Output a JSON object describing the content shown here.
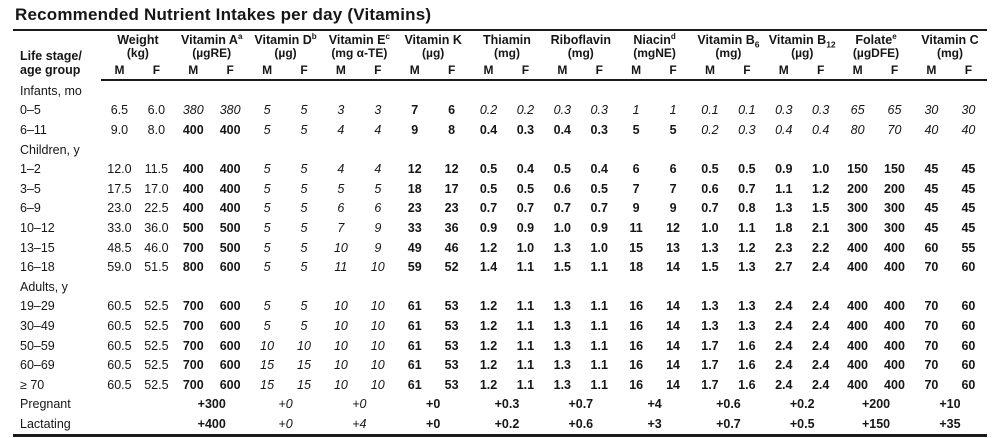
{
  "title": "Recommended Nutrient Intakes per day (Vitamins)",
  "row_header_line1": "Life stage/",
  "row_header_line2": "age group",
  "sex": {
    "m": "M",
    "f": "F"
  },
  "groups": [
    {
      "name": "Weight",
      "unit": "(kg)"
    },
    {
      "name": "Vitamin A",
      "sup": "a",
      "unit": "(µgRE)"
    },
    {
      "name": "Vitamin D",
      "sup": "b",
      "unit": "(µg)"
    },
    {
      "name": "Vitamin E",
      "sup": "c",
      "unit": "(mg α-TE)"
    },
    {
      "name": "Vitamin K",
      "unit": "(µg)"
    },
    {
      "name": "Thiamin",
      "unit": "(mg)"
    },
    {
      "name": "Riboflavin",
      "unit": "(mg)"
    },
    {
      "name": "Niacin",
      "sup": "d",
      "unit": "(mgNE)"
    },
    {
      "name": "Vitamin B",
      "sub": "6",
      "unit": "(mg)"
    },
    {
      "name": "Vitamin B",
      "sub": "12",
      "unit": "(µg)"
    },
    {
      "name": "Folate",
      "sup": "e",
      "unit": "(µgDFE)"
    },
    {
      "name": "Vitamin C",
      "unit": "(mg)"
    }
  ],
  "rows": [
    {
      "type": "section",
      "label": "Infants, mo"
    },
    {
      "type": "data",
      "label": "0–5",
      "cells": [
        [
          "6.5",
          "n"
        ],
        [
          "6.0",
          "n"
        ],
        [
          "380",
          "i"
        ],
        [
          "380",
          "i"
        ],
        [
          "5",
          "i"
        ],
        [
          "5",
          "i"
        ],
        [
          "3",
          "i"
        ],
        [
          "3",
          "i"
        ],
        [
          "7",
          "b"
        ],
        [
          "6",
          "b"
        ],
        [
          "0.2",
          "i"
        ],
        [
          "0.2",
          "i"
        ],
        [
          "0.3",
          "i"
        ],
        [
          "0.3",
          "i"
        ],
        [
          "1",
          "i"
        ],
        [
          "1",
          "i"
        ],
        [
          "0.1",
          "i"
        ],
        [
          "0.1",
          "i"
        ],
        [
          "0.3",
          "i"
        ],
        [
          "0.3",
          "i"
        ],
        [
          "65",
          "i"
        ],
        [
          "65",
          "i"
        ],
        [
          "30",
          "i"
        ],
        [
          "30",
          "i"
        ]
      ]
    },
    {
      "type": "data",
      "label": "6–11",
      "cells": [
        [
          "9.0",
          "n"
        ],
        [
          "8.0",
          "n"
        ],
        [
          "400",
          "b"
        ],
        [
          "400",
          "b"
        ],
        [
          "5",
          "i"
        ],
        [
          "5",
          "i"
        ],
        [
          "4",
          "i"
        ],
        [
          "4",
          "i"
        ],
        [
          "9",
          "b"
        ],
        [
          "8",
          "b"
        ],
        [
          "0.4",
          "b"
        ],
        [
          "0.3",
          "b"
        ],
        [
          "0.4",
          "b"
        ],
        [
          "0.3",
          "b"
        ],
        [
          "5",
          "b"
        ],
        [
          "5",
          "b"
        ],
        [
          "0.2",
          "i"
        ],
        [
          "0.3",
          "i"
        ],
        [
          "0.4",
          "i"
        ],
        [
          "0.4",
          "i"
        ],
        [
          "80",
          "i"
        ],
        [
          "70",
          "i"
        ],
        [
          "40",
          "i"
        ],
        [
          "40",
          "i"
        ]
      ]
    },
    {
      "type": "section",
      "label": "Children, y"
    },
    {
      "type": "data",
      "label": "1–2",
      "cells": [
        [
          "12.0",
          "n"
        ],
        [
          "11.5",
          "n"
        ],
        [
          "400",
          "b"
        ],
        [
          "400",
          "b"
        ],
        [
          "5",
          "i"
        ],
        [
          "5",
          "i"
        ],
        [
          "4",
          "i"
        ],
        [
          "4",
          "i"
        ],
        [
          "12",
          "b"
        ],
        [
          "12",
          "b"
        ],
        [
          "0.5",
          "b"
        ],
        [
          "0.4",
          "b"
        ],
        [
          "0.5",
          "b"
        ],
        [
          "0.4",
          "b"
        ],
        [
          "6",
          "b"
        ],
        [
          "6",
          "b"
        ],
        [
          "0.5",
          "b"
        ],
        [
          "0.5",
          "b"
        ],
        [
          "0.9",
          "b"
        ],
        [
          "1.0",
          "b"
        ],
        [
          "150",
          "b"
        ],
        [
          "150",
          "b"
        ],
        [
          "45",
          "b"
        ],
        [
          "45",
          "b"
        ]
      ]
    },
    {
      "type": "data",
      "label": "3–5",
      "cells": [
        [
          "17.5",
          "n"
        ],
        [
          "17.0",
          "n"
        ],
        [
          "400",
          "b"
        ],
        [
          "400",
          "b"
        ],
        [
          "5",
          "i"
        ],
        [
          "5",
          "i"
        ],
        [
          "5",
          "i"
        ],
        [
          "5",
          "i"
        ],
        [
          "18",
          "b"
        ],
        [
          "17",
          "b"
        ],
        [
          "0.5",
          "b"
        ],
        [
          "0.5",
          "b"
        ],
        [
          "0.6",
          "b"
        ],
        [
          "0.5",
          "b"
        ],
        [
          "7",
          "b"
        ],
        [
          "7",
          "b"
        ],
        [
          "0.6",
          "b"
        ],
        [
          "0.7",
          "b"
        ],
        [
          "1.1",
          "b"
        ],
        [
          "1.2",
          "b"
        ],
        [
          "200",
          "b"
        ],
        [
          "200",
          "b"
        ],
        [
          "45",
          "b"
        ],
        [
          "45",
          "b"
        ]
      ]
    },
    {
      "type": "data",
      "label": "6–9",
      "cells": [
        [
          "23.0",
          "n"
        ],
        [
          "22.5",
          "n"
        ],
        [
          "400",
          "b"
        ],
        [
          "400",
          "b"
        ],
        [
          "5",
          "i"
        ],
        [
          "5",
          "i"
        ],
        [
          "6",
          "i"
        ],
        [
          "6",
          "i"
        ],
        [
          "23",
          "b"
        ],
        [
          "23",
          "b"
        ],
        [
          "0.7",
          "b"
        ],
        [
          "0.7",
          "b"
        ],
        [
          "0.7",
          "b"
        ],
        [
          "0.7",
          "b"
        ],
        [
          "9",
          "b"
        ],
        [
          "9",
          "b"
        ],
        [
          "0.7",
          "b"
        ],
        [
          "0.8",
          "b"
        ],
        [
          "1.3",
          "b"
        ],
        [
          "1.5",
          "b"
        ],
        [
          "300",
          "b"
        ],
        [
          "300",
          "b"
        ],
        [
          "45",
          "b"
        ],
        [
          "45",
          "b"
        ]
      ]
    },
    {
      "type": "data",
      "label": "10–12",
      "cells": [
        [
          "33.0",
          "n"
        ],
        [
          "36.0",
          "n"
        ],
        [
          "500",
          "b"
        ],
        [
          "500",
          "b"
        ],
        [
          "5",
          "i"
        ],
        [
          "5",
          "i"
        ],
        [
          "7",
          "i"
        ],
        [
          "9",
          "i"
        ],
        [
          "33",
          "b"
        ],
        [
          "36",
          "b"
        ],
        [
          "0.9",
          "b"
        ],
        [
          "0.9",
          "b"
        ],
        [
          "1.0",
          "b"
        ],
        [
          "0.9",
          "b"
        ],
        [
          "11",
          "b"
        ],
        [
          "12",
          "b"
        ],
        [
          "1.0",
          "b"
        ],
        [
          "1.1",
          "b"
        ],
        [
          "1.8",
          "b"
        ],
        [
          "2.1",
          "b"
        ],
        [
          "300",
          "b"
        ],
        [
          "300",
          "b"
        ],
        [
          "45",
          "b"
        ],
        [
          "45",
          "b"
        ]
      ]
    },
    {
      "type": "data",
      "label": "13–15",
      "cells": [
        [
          "48.5",
          "n"
        ],
        [
          "46.0",
          "n"
        ],
        [
          "700",
          "b"
        ],
        [
          "500",
          "b"
        ],
        [
          "5",
          "i"
        ],
        [
          "5",
          "i"
        ],
        [
          "10",
          "i"
        ],
        [
          "9",
          "i"
        ],
        [
          "49",
          "b"
        ],
        [
          "46",
          "b"
        ],
        [
          "1.2",
          "b"
        ],
        [
          "1.0",
          "b"
        ],
        [
          "1.3",
          "b"
        ],
        [
          "1.0",
          "b"
        ],
        [
          "15",
          "b"
        ],
        [
          "13",
          "b"
        ],
        [
          "1.3",
          "b"
        ],
        [
          "1.2",
          "b"
        ],
        [
          "2.3",
          "b"
        ],
        [
          "2.2",
          "b"
        ],
        [
          "400",
          "b"
        ],
        [
          "400",
          "b"
        ],
        [
          "60",
          "b"
        ],
        [
          "55",
          "b"
        ]
      ]
    },
    {
      "type": "data",
      "label": "16–18",
      "cells": [
        [
          "59.0",
          "n"
        ],
        [
          "51.5",
          "n"
        ],
        [
          "800",
          "b"
        ],
        [
          "600",
          "b"
        ],
        [
          "5",
          "i"
        ],
        [
          "5",
          "i"
        ],
        [
          "11",
          "i"
        ],
        [
          "10",
          "i"
        ],
        [
          "59",
          "b"
        ],
        [
          "52",
          "b"
        ],
        [
          "1.4",
          "b"
        ],
        [
          "1.1",
          "b"
        ],
        [
          "1.5",
          "b"
        ],
        [
          "1.1",
          "b"
        ],
        [
          "18",
          "b"
        ],
        [
          "14",
          "b"
        ],
        [
          "1.5",
          "b"
        ],
        [
          "1.3",
          "b"
        ],
        [
          "2.7",
          "b"
        ],
        [
          "2.4",
          "b"
        ],
        [
          "400",
          "b"
        ],
        [
          "400",
          "b"
        ],
        [
          "70",
          "b"
        ],
        [
          "60",
          "b"
        ]
      ]
    },
    {
      "type": "section",
      "label": "Adults, y"
    },
    {
      "type": "data",
      "label": "19–29",
      "cells": [
        [
          "60.5",
          "n"
        ],
        [
          "52.5",
          "n"
        ],
        [
          "700",
          "b"
        ],
        [
          "600",
          "b"
        ],
        [
          "5",
          "i"
        ],
        [
          "5",
          "i"
        ],
        [
          "10",
          "i"
        ],
        [
          "10",
          "i"
        ],
        [
          "61",
          "b"
        ],
        [
          "53",
          "b"
        ],
        [
          "1.2",
          "b"
        ],
        [
          "1.1",
          "b"
        ],
        [
          "1.3",
          "b"
        ],
        [
          "1.1",
          "b"
        ],
        [
          "16",
          "b"
        ],
        [
          "14",
          "b"
        ],
        [
          "1.3",
          "b"
        ],
        [
          "1.3",
          "b"
        ],
        [
          "2.4",
          "b"
        ],
        [
          "2.4",
          "b"
        ],
        [
          "400",
          "b"
        ],
        [
          "400",
          "b"
        ],
        [
          "70",
          "b"
        ],
        [
          "60",
          "b"
        ]
      ]
    },
    {
      "type": "data",
      "label": "30–49",
      "cells": [
        [
          "60.5",
          "n"
        ],
        [
          "52.5",
          "n"
        ],
        [
          "700",
          "b"
        ],
        [
          "600",
          "b"
        ],
        [
          "5",
          "i"
        ],
        [
          "5",
          "i"
        ],
        [
          "10",
          "i"
        ],
        [
          "10",
          "i"
        ],
        [
          "61",
          "b"
        ],
        [
          "53",
          "b"
        ],
        [
          "1.2",
          "b"
        ],
        [
          "1.1",
          "b"
        ],
        [
          "1.3",
          "b"
        ],
        [
          "1.1",
          "b"
        ],
        [
          "16",
          "b"
        ],
        [
          "14",
          "b"
        ],
        [
          "1.3",
          "b"
        ],
        [
          "1.3",
          "b"
        ],
        [
          "2.4",
          "b"
        ],
        [
          "2.4",
          "b"
        ],
        [
          "400",
          "b"
        ],
        [
          "400",
          "b"
        ],
        [
          "70",
          "b"
        ],
        [
          "60",
          "b"
        ]
      ]
    },
    {
      "type": "data",
      "label": "50–59",
      "cells": [
        [
          "60.5",
          "n"
        ],
        [
          "52.5",
          "n"
        ],
        [
          "700",
          "b"
        ],
        [
          "600",
          "b"
        ],
        [
          "10",
          "i"
        ],
        [
          "10",
          "i"
        ],
        [
          "10",
          "i"
        ],
        [
          "10",
          "i"
        ],
        [
          "61",
          "b"
        ],
        [
          "53",
          "b"
        ],
        [
          "1.2",
          "b"
        ],
        [
          "1.1",
          "b"
        ],
        [
          "1.3",
          "b"
        ],
        [
          "1.1",
          "b"
        ],
        [
          "16",
          "b"
        ],
        [
          "14",
          "b"
        ],
        [
          "1.7",
          "b"
        ],
        [
          "1.6",
          "b"
        ],
        [
          "2.4",
          "b"
        ],
        [
          "2.4",
          "b"
        ],
        [
          "400",
          "b"
        ],
        [
          "400",
          "b"
        ],
        [
          "70",
          "b"
        ],
        [
          "60",
          "b"
        ]
      ]
    },
    {
      "type": "data",
      "label": "60–69",
      "cells": [
        [
          "60.5",
          "n"
        ],
        [
          "52.5",
          "n"
        ],
        [
          "700",
          "b"
        ],
        [
          "600",
          "b"
        ],
        [
          "15",
          "i"
        ],
        [
          "15",
          "i"
        ],
        [
          "10",
          "i"
        ],
        [
          "10",
          "i"
        ],
        [
          "61",
          "b"
        ],
        [
          "53",
          "b"
        ],
        [
          "1.2",
          "b"
        ],
        [
          "1.1",
          "b"
        ],
        [
          "1.3",
          "b"
        ],
        [
          "1.1",
          "b"
        ],
        [
          "16",
          "b"
        ],
        [
          "14",
          "b"
        ],
        [
          "1.7",
          "b"
        ],
        [
          "1.6",
          "b"
        ],
        [
          "2.4",
          "b"
        ],
        [
          "2.4",
          "b"
        ],
        [
          "400",
          "b"
        ],
        [
          "400",
          "b"
        ],
        [
          "70",
          "b"
        ],
        [
          "60",
          "b"
        ]
      ]
    },
    {
      "type": "data",
      "label": "≥ 70",
      "cells": [
        [
          "60.5",
          "n"
        ],
        [
          "52.5",
          "n"
        ],
        [
          "700",
          "b"
        ],
        [
          "600",
          "b"
        ],
        [
          "15",
          "i"
        ],
        [
          "15",
          "i"
        ],
        [
          "10",
          "i"
        ],
        [
          "10",
          "i"
        ],
        [
          "61",
          "b"
        ],
        [
          "53",
          "b"
        ],
        [
          "1.2",
          "b"
        ],
        [
          "1.1",
          "b"
        ],
        [
          "1.3",
          "b"
        ],
        [
          "1.1",
          "b"
        ],
        [
          "16",
          "b"
        ],
        [
          "14",
          "b"
        ],
        [
          "1.7",
          "b"
        ],
        [
          "1.6",
          "b"
        ],
        [
          "2.4",
          "b"
        ],
        [
          "2.4",
          "b"
        ],
        [
          "400",
          "b"
        ],
        [
          "400",
          "b"
        ],
        [
          "70",
          "b"
        ],
        [
          "60",
          "b"
        ]
      ]
    },
    {
      "type": "span",
      "label": "Pregnant",
      "cells": [
        [
          "",
          "n"
        ],
        [
          "+300",
          "b"
        ],
        [
          "+0",
          "i"
        ],
        [
          "+0",
          "i"
        ],
        [
          "+0",
          "b"
        ],
        [
          "+0.3",
          "b"
        ],
        [
          "+0.7",
          "b"
        ],
        [
          "+4",
          "b"
        ],
        [
          "+0.6",
          "b"
        ],
        [
          "+0.2",
          "b"
        ],
        [
          "+200",
          "b"
        ],
        [
          "+10",
          "b"
        ]
      ]
    },
    {
      "type": "span",
      "label": "Lactating",
      "cells": [
        [
          "",
          "n"
        ],
        [
          "+400",
          "b"
        ],
        [
          "+0",
          "i"
        ],
        [
          "+4",
          "i"
        ],
        [
          "+0",
          "b"
        ],
        [
          "+0.2",
          "b"
        ],
        [
          "+0.6",
          "b"
        ],
        [
          "+3",
          "b"
        ],
        [
          "+0.7",
          "b"
        ],
        [
          "+0.5",
          "b"
        ],
        [
          "+150",
          "b"
        ],
        [
          "+35",
          "b"
        ]
      ]
    }
  ]
}
